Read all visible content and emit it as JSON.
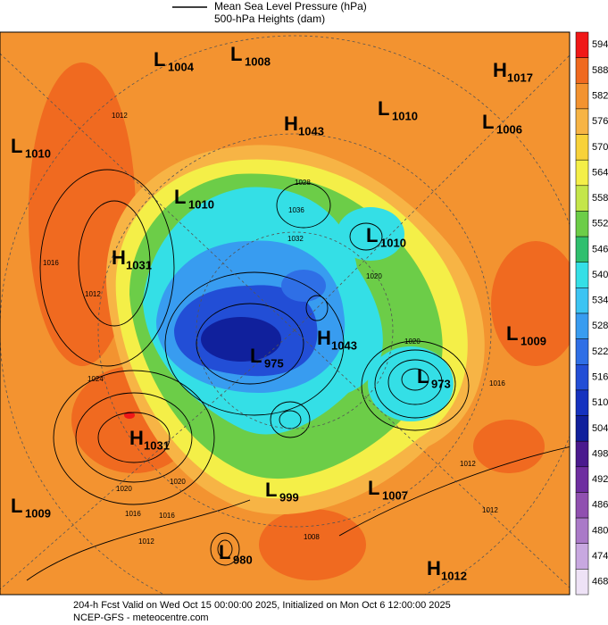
{
  "legend": {
    "mslp": "Mean Sea Level Pressure (hPa)",
    "heights": "500-hPa Heights (dam)"
  },
  "centers": [
    {
      "letter": "L",
      "value": "1004"
    },
    {
      "letter": "L",
      "value": "1008"
    },
    {
      "letter": "H",
      "value": "1017"
    },
    {
      "letter": "L",
      "value": "1010"
    },
    {
      "letter": "L",
      "value": "1006"
    },
    {
      "letter": "H",
      "value": "1043"
    },
    {
      "letter": "L",
      "value": "1010"
    },
    {
      "letter": "L",
      "value": "1010"
    },
    {
      "letter": "L",
      "value": "1010"
    },
    {
      "letter": "H",
      "value": "1031"
    },
    {
      "letter": "L",
      "value": "1009"
    },
    {
      "letter": "H",
      "value": "1043"
    },
    {
      "letter": "L",
      "value": "975"
    },
    {
      "letter": "L",
      "value": "973"
    },
    {
      "letter": "H",
      "value": "1031"
    },
    {
      "letter": "L",
      "value": "999"
    },
    {
      "letter": "L",
      "value": "1007"
    },
    {
      "letter": "L",
      "value": "1009"
    },
    {
      "letter": "L",
      "value": "980"
    },
    {
      "letter": "H",
      "value": "1012"
    }
  ],
  "contour_labels": [
    "1012",
    "1016",
    "1012",
    "1024",
    "1020",
    "1020",
    "1016",
    "1016",
    "1012",
    "1028",
    "1036",
    "1032",
    "1020",
    "1020",
    "1016",
    "1012",
    "1012",
    "1008"
  ],
  "colorbar": [
    {
      "label": "594",
      "color": "#f01818"
    },
    {
      "label": "588",
      "color": "#f06a20"
    },
    {
      "label": "582",
      "color": "#f39330"
    },
    {
      "label": "576",
      "color": "#f7b445"
    },
    {
      "label": "570",
      "color": "#f8d23a"
    },
    {
      "label": "564",
      "color": "#f4ef48"
    },
    {
      "label": "558",
      "color": "#c4e64a"
    },
    {
      "label": "552",
      "color": "#6ccd48"
    },
    {
      "label": "546",
      "color": "#2fbf6e"
    },
    {
      "label": "540",
      "color": "#34dfe6"
    },
    {
      "label": "534",
      "color": "#3cc4f2"
    },
    {
      "label": "528",
      "color": "#389cf0"
    },
    {
      "label": "522",
      "color": "#2f6fe6"
    },
    {
      "label": "516",
      "color": "#224ed6"
    },
    {
      "label": "510",
      "color": "#1532bf"
    },
    {
      "label": "504",
      "color": "#10209c"
    },
    {
      "label": "498",
      "color": "#4a1a8e"
    },
    {
      "label": "492",
      "color": "#6e2ea0"
    },
    {
      "label": "486",
      "color": "#9050b0"
    },
    {
      "label": "480",
      "color": "#aa7ac8"
    },
    {
      "label": "474",
      "color": "#c8a8e0"
    },
    {
      "label": "468",
      "color": "#eee2f6"
    }
  ],
  "footer": {
    "line1": "204-h Fcst Valid on Wed Oct 15 00:00:00 2025, Initialized on Mon Oct  6 12:00:00 2025",
    "line2": "NCEP-GFS - meteocentre.com"
  }
}
